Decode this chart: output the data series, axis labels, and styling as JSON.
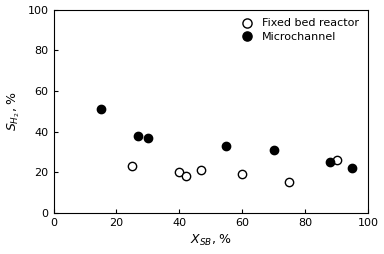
{
  "fixed_bed_x": [
    25,
    40,
    42,
    47,
    60,
    75,
    90
  ],
  "fixed_bed_y": [
    23,
    20,
    18,
    21,
    19,
    15,
    26
  ],
  "microchannel_x": [
    15,
    27,
    30,
    55,
    70,
    88,
    95
  ],
  "microchannel_y": [
    51,
    38,
    37,
    33,
    31,
    25,
    22
  ],
  "xlabel": "$X_{SB}$, %",
  "ylabel": "$S_{H_2}$, %",
  "xlim": [
    0,
    100
  ],
  "ylim": [
    0,
    100
  ],
  "xticks": [
    0,
    20,
    40,
    60,
    80,
    100
  ],
  "yticks": [
    0,
    20,
    40,
    60,
    80,
    100
  ],
  "legend_fixed": "Fixed bed reactor",
  "legend_micro": "Microchannel",
  "color": "black",
  "markersize": 6
}
